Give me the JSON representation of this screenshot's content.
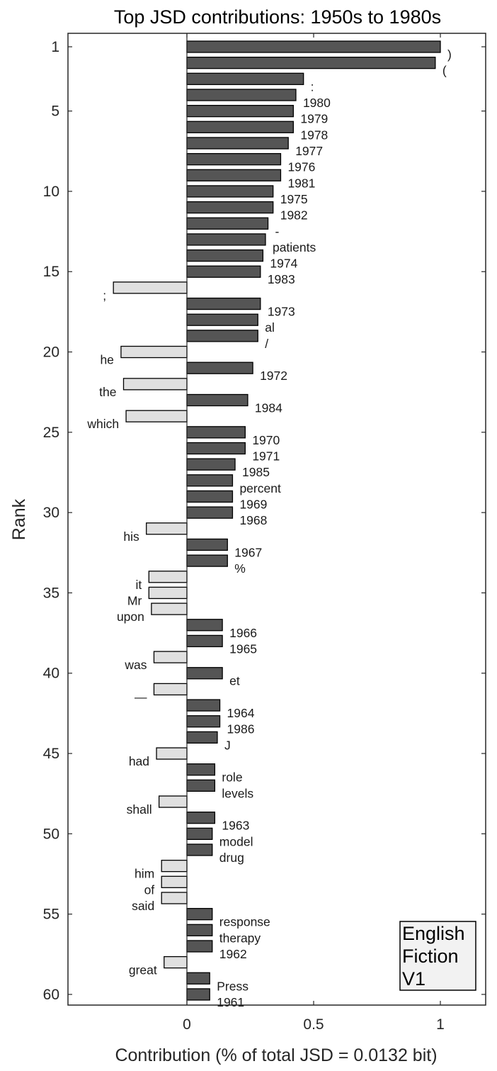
{
  "chart_data": {
    "type": "bar",
    "orientation": "horizontal",
    "title": "Top JSD contributions: 1950s to 1980s",
    "xlabel": "Contribution (% of total JSD = 0.0132 bit)",
    "ylabel": "Rank",
    "xlim": [
      -0.47,
      1.18
    ],
    "ylim": [
      0.5,
      60.5
    ],
    "x_ticks": [
      0,
      0.5,
      1
    ],
    "x_tick_labels": [
      "0",
      "0.5",
      "1"
    ],
    "y_ticks": [
      1,
      5,
      10,
      15,
      20,
      25,
      30,
      35,
      40,
      45,
      50,
      55,
      60
    ],
    "y_tick_labels": [
      "1",
      "5",
      "10",
      "15",
      "20",
      "25",
      "30",
      "35",
      "40",
      "45",
      "50",
      "55",
      "60"
    ],
    "grid": false,
    "legend_box": [
      "English",
      "Fiction",
      "V1"
    ],
    "colors": {
      "positive": "#555555",
      "negative": "#e0e0e0",
      "edge": "#000000"
    },
    "bars": [
      {
        "rank": 1,
        "word": ")",
        "value": 1.0
      },
      {
        "rank": 2,
        "word": "(",
        "value": 0.98
      },
      {
        "rank": 3,
        "word": ":",
        "value": 0.46
      },
      {
        "rank": 4,
        "word": "1980",
        "value": 0.43
      },
      {
        "rank": 5,
        "word": "1979",
        "value": 0.42
      },
      {
        "rank": 6,
        "word": "1978",
        "value": 0.42
      },
      {
        "rank": 7,
        "word": "1977",
        "value": 0.4
      },
      {
        "rank": 8,
        "word": "1976",
        "value": 0.37
      },
      {
        "rank": 9,
        "word": "1981",
        "value": 0.37
      },
      {
        "rank": 10,
        "word": "1975",
        "value": 0.34
      },
      {
        "rank": 11,
        "word": "1982",
        "value": 0.34
      },
      {
        "rank": 12,
        "word": "-",
        "value": 0.32
      },
      {
        "rank": 13,
        "word": "patients",
        "value": 0.31
      },
      {
        "rank": 14,
        "word": "1974",
        "value": 0.3
      },
      {
        "rank": 15,
        "word": "1983",
        "value": 0.29
      },
      {
        "rank": 16,
        "word": ";",
        "value": -0.29
      },
      {
        "rank": 17,
        "word": "1973",
        "value": 0.29
      },
      {
        "rank": 18,
        "word": "al",
        "value": 0.28
      },
      {
        "rank": 19,
        "word": "/",
        "value": 0.28
      },
      {
        "rank": 20,
        "word": "he",
        "value": -0.26
      },
      {
        "rank": 21,
        "word": "1972",
        "value": 0.26
      },
      {
        "rank": 22,
        "word": "the",
        "value": -0.25
      },
      {
        "rank": 23,
        "word": "1984",
        "value": 0.24
      },
      {
        "rank": 24,
        "word": "which",
        "value": -0.24
      },
      {
        "rank": 25,
        "word": "1970",
        "value": 0.23
      },
      {
        "rank": 26,
        "word": "1971",
        "value": 0.23
      },
      {
        "rank": 27,
        "word": "1985",
        "value": 0.19
      },
      {
        "rank": 28,
        "word": "percent",
        "value": 0.18
      },
      {
        "rank": 29,
        "word": "1969",
        "value": 0.18
      },
      {
        "rank": 30,
        "word": "1968",
        "value": 0.18
      },
      {
        "rank": 31,
        "word": "his",
        "value": -0.16
      },
      {
        "rank": 32,
        "word": "1967",
        "value": 0.16
      },
      {
        "rank": 33,
        "word": "%",
        "value": 0.16
      },
      {
        "rank": 34,
        "word": "it",
        "value": -0.15
      },
      {
        "rank": 35,
        "word": "Mr",
        "value": -0.15
      },
      {
        "rank": 36,
        "word": "upon",
        "value": -0.14
      },
      {
        "rank": 37,
        "word": "1966",
        "value": 0.14
      },
      {
        "rank": 38,
        "word": "1965",
        "value": 0.14
      },
      {
        "rank": 39,
        "word": "was",
        "value": -0.13
      },
      {
        "rank": 40,
        "word": "et",
        "value": 0.14
      },
      {
        "rank": 41,
        "word": "—",
        "value": -0.13
      },
      {
        "rank": 42,
        "word": "1964",
        "value": 0.13
      },
      {
        "rank": 43,
        "word": "1986",
        "value": 0.13
      },
      {
        "rank": 44,
        "word": "J",
        "value": 0.12
      },
      {
        "rank": 45,
        "word": "had",
        "value": -0.12
      },
      {
        "rank": 46,
        "word": "role",
        "value": 0.11
      },
      {
        "rank": 47,
        "word": "levels",
        "value": 0.11
      },
      {
        "rank": 48,
        "word": "shall",
        "value": -0.11
      },
      {
        "rank": 49,
        "word": "1963",
        "value": 0.11
      },
      {
        "rank": 50,
        "word": "model",
        "value": 0.1
      },
      {
        "rank": 51,
        "word": "drug",
        "value": 0.1
      },
      {
        "rank": 52,
        "word": "him",
        "value": -0.1
      },
      {
        "rank": 53,
        "word": "of",
        "value": -0.1
      },
      {
        "rank": 54,
        "word": "said",
        "value": -0.1
      },
      {
        "rank": 55,
        "word": "response",
        "value": 0.1
      },
      {
        "rank": 56,
        "word": "therapy",
        "value": 0.1
      },
      {
        "rank": 57,
        "word": "1962",
        "value": 0.1
      },
      {
        "rank": 58,
        "word": "great",
        "value": -0.09
      },
      {
        "rank": 59,
        "word": "Press",
        "value": 0.09
      },
      {
        "rank": 60,
        "word": "1961",
        "value": 0.09
      }
    ]
  }
}
